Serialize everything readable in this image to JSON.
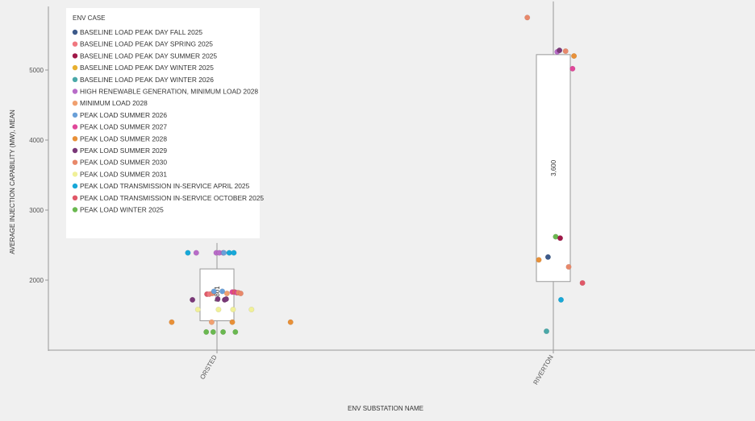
{
  "chart_data": {
    "type": "scatter",
    "subtype": "jitter-box-plot",
    "xlabel": "ENV SUBSTATION NAME",
    "ylabel": "AVERAGE INJECTION CAPABILITY (MW), MEAN",
    "ylim": [
      1000,
      6000
    ],
    "yticks": [
      "2000",
      "3000",
      "4000",
      "5000"
    ],
    "categories": [
      "ORSTED",
      "RIVERTON"
    ],
    "grid": false,
    "legend": {
      "title": "ENV CASE",
      "position": "top-left",
      "items": [
        {
          "label": "BASELINE LOAD PEAK DAY FALL 2025",
          "color": "#3d5a8a"
        },
        {
          "label": "BASELINE LOAD PEAK DAY SPRING 2025",
          "color": "#f07880"
        },
        {
          "label": "BASELINE LOAD PEAK DAY SUMMER 2025",
          "color": "#a01848"
        },
        {
          "label": "BASELINE LOAD PEAK DAY WINTER 2025",
          "color": "#e8b030"
        },
        {
          "label": "BASELINE LOAD PEAK DAY WINTER 2026",
          "color": "#4aa8a8"
        },
        {
          "label": "HIGH RENEWABLE GENERATION, MINIMUM LOAD 2028",
          "color": "#b86cc8"
        },
        {
          "label": "MINIMUM LOAD 2028",
          "color": "#f0a070"
        },
        {
          "label": "PEAK LOAD SUMMER 2026",
          "color": "#6aa0d8"
        },
        {
          "label": "PEAK LOAD SUMMER 2027",
          "color": "#e0489a"
        },
        {
          "label": "PEAK LOAD SUMMER 2028",
          "color": "#e89038"
        },
        {
          "label": "PEAK LOAD SUMMER 2029",
          "color": "#7a3878"
        },
        {
          "label": "PEAK LOAD SUMMER 2030",
          "color": "#e8886a"
        },
        {
          "label": "PEAK LOAD SUMMER 2031",
          "color": "#f0f098"
        },
        {
          "label": "PEAK LOAD TRANSMISSION IN-SERVICE APRIL 2025",
          "color": "#18a8d8"
        },
        {
          "label": "PEAK LOAD TRANSMISSION IN-SERVICE OCTOBER 2025",
          "color": "#e05868"
        },
        {
          "label": "PEAK LOAD WINTER 2025",
          "color": "#6ab850"
        }
      ]
    },
    "boxes": [
      {
        "category": "ORSTED",
        "q1": 1420,
        "median": 1801,
        "q3": 2160,
        "whisker_low": 1000,
        "whisker_high": 2530,
        "median_label": "1,801"
      },
      {
        "category": "RIVERTON",
        "q1": 1980,
        "median": 3600,
        "q3": 5220,
        "whisker_low": 1000,
        "whisker_high": 5980,
        "median_label": "3,600"
      }
    ],
    "points": [
      {
        "category": "ORSTED",
        "jitter": -0.59,
        "y": 1400,
        "series": "PEAK LOAD SUMMER 2028"
      },
      {
        "category": "ORSTED",
        "jitter": -0.38,
        "y": 2390,
        "series": "PEAK LOAD TRANSMISSION IN-SERVICE APRIL 2025"
      },
      {
        "category": "ORSTED",
        "jitter": -0.27,
        "y": 2390,
        "series": "HIGH RENEWABLE GENERATION, MINIMUM LOAD 2028"
      },
      {
        "category": "ORSTED",
        "jitter": -0.32,
        "y": 1720,
        "series": "PEAK LOAD SUMMER 2029"
      },
      {
        "category": "ORSTED",
        "jitter": -0.25,
        "y": 1580,
        "series": "PEAK LOAD SUMMER 2031"
      },
      {
        "category": "ORSTED",
        "jitter": -0.13,
        "y": 1800,
        "series": "PEAK LOAD TRANSMISSION IN-SERVICE OCTOBER 2025"
      },
      {
        "category": "ORSTED",
        "jitter": -0.1,
        "y": 1800,
        "series": "BASELINE LOAD PEAK DAY SPRING 2025"
      },
      {
        "category": "ORSTED",
        "jitter": -0.06,
        "y": 1810,
        "series": "PEAK LOAD SUMMER 2030"
      },
      {
        "category": "ORSTED",
        "jitter": -0.04,
        "y": 1840,
        "series": "PEAK LOAD SUMMER 2026"
      },
      {
        "category": "ORSTED",
        "jitter": -0.14,
        "y": 1260,
        "series": "PEAK LOAD WINTER 2025"
      },
      {
        "category": "ORSTED",
        "jitter": -0.07,
        "y": 1400,
        "series": "MINIMUM LOAD 2028"
      },
      {
        "category": "ORSTED",
        "jitter": -0.05,
        "y": 1260,
        "series": "PEAK LOAD WINTER 2025"
      },
      {
        "category": "ORSTED",
        "jitter": -0.01,
        "y": 2390,
        "series": "HIGH RENEWABLE GENERATION, MINIMUM LOAD 2028"
      },
      {
        "category": "ORSTED",
        "jitter": 0.01,
        "y": 1730,
        "series": "PEAK LOAD SUMMER 2029"
      },
      {
        "category": "ORSTED",
        "jitter": 0.02,
        "y": 1580,
        "series": "PEAK LOAD SUMMER 2031"
      },
      {
        "category": "ORSTED",
        "jitter": 0.03,
        "y": 2390,
        "series": "HIGH RENEWABLE GENERATION, MINIMUM LOAD 2028"
      },
      {
        "category": "ORSTED",
        "jitter": 0.07,
        "y": 1840,
        "series": "PEAK LOAD SUMMER 2026"
      },
      {
        "category": "ORSTED",
        "jitter": 0.08,
        "y": 2390,
        "series": "HIGH RENEWABLE GENERATION, MINIMUM LOAD 2028"
      },
      {
        "category": "ORSTED",
        "jitter": 0.09,
        "y": 2390,
        "series": "PEAK LOAD SUMMER 2026"
      },
      {
        "category": "ORSTED",
        "jitter": 0.08,
        "y": 1260,
        "series": "PEAK LOAD WINTER 2025"
      },
      {
        "category": "ORSTED",
        "jitter": 0.1,
        "y": 1720,
        "series": "PEAK LOAD SUMMER 2029"
      },
      {
        "category": "ORSTED",
        "jitter": 0.12,
        "y": 1730,
        "series": "PEAK LOAD SUMMER 2029"
      },
      {
        "category": "ORSTED",
        "jitter": 0.13,
        "y": 1810,
        "series": "MINIMUM LOAD 2028"
      },
      {
        "category": "ORSTED",
        "jitter": 0.16,
        "y": 2390,
        "series": "PEAK LOAD TRANSMISSION IN-SERVICE APRIL 2025"
      },
      {
        "category": "ORSTED",
        "jitter": 0.2,
        "y": 1830,
        "series": "PEAK LOAD SUMMER 2027"
      },
      {
        "category": "ORSTED",
        "jitter": 0.23,
        "y": 1830,
        "series": "PEAK LOAD TRANSMISSION IN-SERVICE OCTOBER 2025"
      },
      {
        "category": "ORSTED",
        "jitter": 0.2,
        "y": 1400,
        "series": "PEAK LOAD SUMMER 2028"
      },
      {
        "category": "ORSTED",
        "jitter": 0.21,
        "y": 1580,
        "series": "PEAK LOAD SUMMER 2031"
      },
      {
        "category": "ORSTED",
        "jitter": 0.22,
        "y": 2390,
        "series": "PEAK LOAD TRANSMISSION IN-SERVICE APRIL 2025"
      },
      {
        "category": "ORSTED",
        "jitter": 0.24,
        "y": 1260,
        "series": "PEAK LOAD WINTER 2025"
      },
      {
        "category": "ORSTED",
        "jitter": 0.26,
        "y": 1820,
        "series": "PEAK LOAD SUMMER 2027"
      },
      {
        "category": "ORSTED",
        "jitter": 0.28,
        "y": 1820,
        "series": "PEAK LOAD SUMMER 2030"
      },
      {
        "category": "ORSTED",
        "jitter": 0.31,
        "y": 1810,
        "series": "PEAK LOAD SUMMER 2030"
      },
      {
        "category": "ORSTED",
        "jitter": 0.45,
        "y": 1580,
        "series": "PEAK LOAD SUMMER 2031"
      },
      {
        "category": "ORSTED",
        "jitter": 0.96,
        "y": 1400,
        "series": "PEAK LOAD SUMMER 2028"
      },
      {
        "category": "RIVERTON",
        "jitter": -0.34,
        "y": 5750,
        "series": "PEAK LOAD SUMMER 2030"
      },
      {
        "category": "RIVERTON",
        "jitter": 0.05,
        "y": 5260,
        "series": "HIGH RENEWABLE GENERATION, MINIMUM LOAD 2028"
      },
      {
        "category": "RIVERTON",
        "jitter": 0.08,
        "y": 5280,
        "series": "PEAK LOAD SUMMER 2029"
      },
      {
        "category": "RIVERTON",
        "jitter": 0.16,
        "y": 5270,
        "series": "PEAK LOAD SUMMER 2030"
      },
      {
        "category": "RIVERTON",
        "jitter": 0.25,
        "y": 5020,
        "series": "PEAK LOAD SUMMER 2027"
      },
      {
        "category": "RIVERTON",
        "jitter": 0.27,
        "y": 5200,
        "series": "PEAK LOAD SUMMER 2028"
      },
      {
        "category": "RIVERTON",
        "jitter": -0.19,
        "y": 2290,
        "series": "PEAK LOAD SUMMER 2028"
      },
      {
        "category": "RIVERTON",
        "jitter": -0.07,
        "y": 2330,
        "series": "BASELINE LOAD PEAK DAY FALL 2025"
      },
      {
        "category": "RIVERTON",
        "jitter": 0.03,
        "y": 2620,
        "series": "PEAK LOAD WINTER 2025"
      },
      {
        "category": "RIVERTON",
        "jitter": 0.09,
        "y": 2600,
        "series": "BASELINE LOAD PEAK DAY SUMMER 2025"
      },
      {
        "category": "RIVERTON",
        "jitter": 0.2,
        "y": 2190,
        "series": "PEAK LOAD SUMMER 2030"
      },
      {
        "category": "RIVERTON",
        "jitter": 0.38,
        "y": 1960,
        "series": "PEAK LOAD TRANSMISSION IN-SERVICE OCTOBER 2025"
      },
      {
        "category": "RIVERTON",
        "jitter": 0.1,
        "y": 1720,
        "series": "PEAK LOAD TRANSMISSION IN-SERVICE APRIL 2025"
      },
      {
        "category": "RIVERTON",
        "jitter": -0.09,
        "y": 1270,
        "series": "BASELINE LOAD PEAK DAY WINTER 2026"
      }
    ]
  }
}
